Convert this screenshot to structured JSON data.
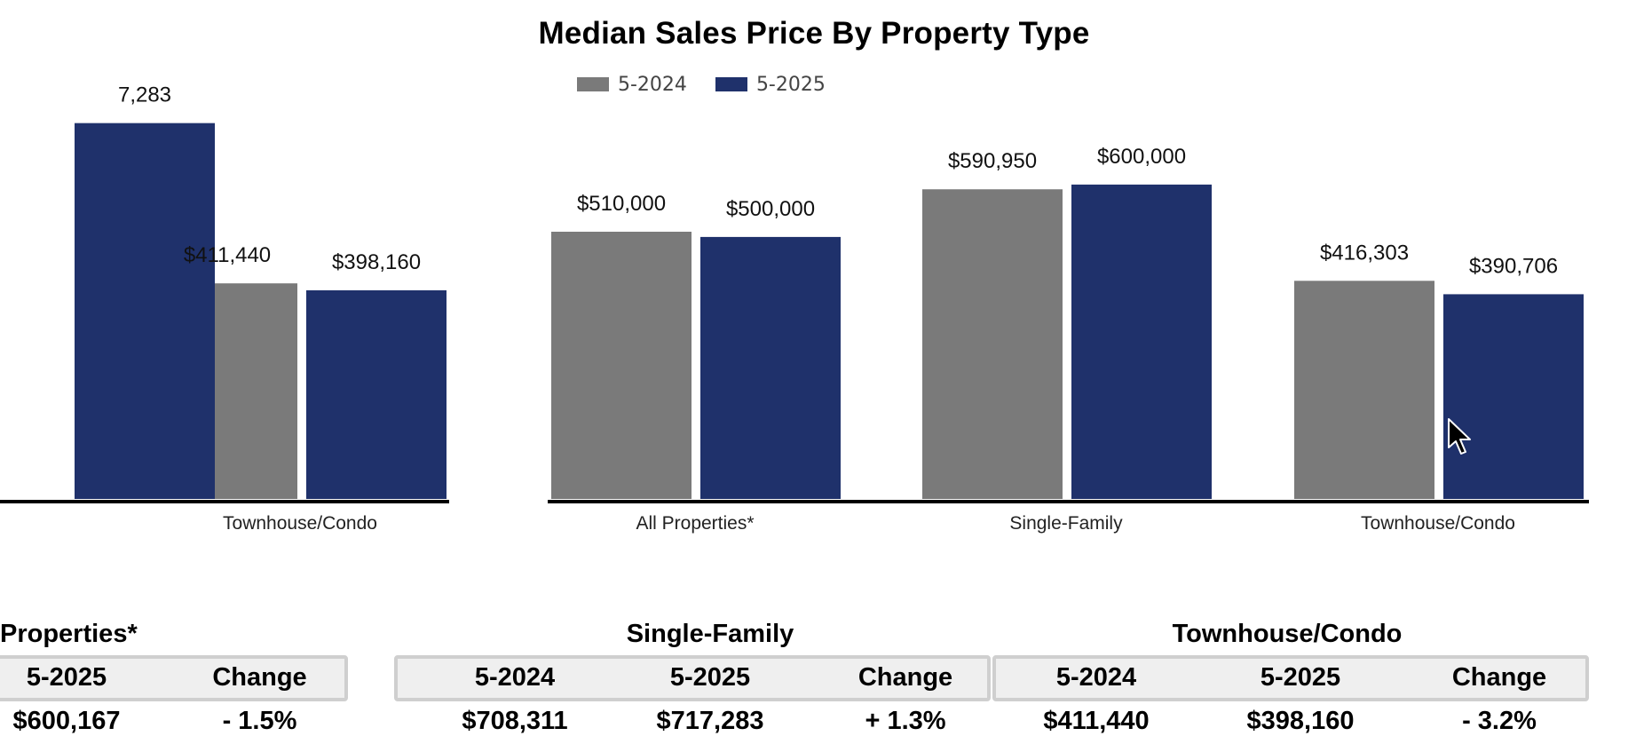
{
  "chart_data": {
    "type": "bar",
    "title": "Median Sales Price By Property Type",
    "legend": [
      "5-2024",
      "5-2025"
    ],
    "legend_position": "top-center",
    "colors": {
      "5-2024": "#7a7a7a",
      "5-2025": "#1f316b"
    },
    "ylim": [
      0,
      1000000
    ],
    "groups": [
      {
        "visible_categories": [
          "",
          "Townhouse/Condo"
        ],
        "series": [
          {
            "name": "5-2024",
            "values": [
              null,
              411440
            ]
          },
          {
            "name": "5-2025",
            "values": [
              717283,
              398160
            ]
          }
        ],
        "labels": [
          {
            "category": 0,
            "series": "5-2025",
            "text": "7,283"
          },
          {
            "category": 1,
            "series": "5-2024",
            "text": "$411,440"
          },
          {
            "category": 1,
            "series": "5-2025",
            "text": "$398,160"
          }
        ]
      },
      {
        "visible_categories": [
          "All Properties*",
          "Single-Family",
          "Townhouse/Condo"
        ],
        "series": [
          {
            "name": "5-2024",
            "values": [
              510000,
              590950,
              416303
            ]
          },
          {
            "name": "5-2025",
            "values": [
              500000,
              600000,
              390706
            ]
          }
        ],
        "labels": [
          {
            "category": 0,
            "series": "5-2024",
            "text": "$510,000"
          },
          {
            "category": 0,
            "series": "5-2025",
            "text": "$500,000"
          },
          {
            "category": 1,
            "series": "5-2024",
            "text": "$590,950"
          },
          {
            "category": 1,
            "series": "5-2025",
            "text": "$600,000"
          },
          {
            "category": 2,
            "series": "5-2024",
            "text": "$416,303"
          },
          {
            "category": 2,
            "series": "5-2025",
            "text": "$390,706"
          }
        ]
      }
    ]
  },
  "table": {
    "groups": [
      {
        "title": "Properties*",
        "headers": [
          "5-2025",
          "Change"
        ],
        "values": [
          "$600,167",
          "- 1.5%"
        ]
      },
      {
        "title": "Single-Family",
        "headers": [
          "5-2024",
          "5-2025",
          "Change"
        ],
        "values": [
          "$708,311",
          "$717,283",
          "+ 1.3%"
        ]
      },
      {
        "title": "Townhouse/Condo",
        "headers": [
          "5-2024",
          "5-2025",
          "Change"
        ],
        "values": [
          "$411,440",
          "$398,160",
          "- 3.2%"
        ]
      }
    ]
  }
}
